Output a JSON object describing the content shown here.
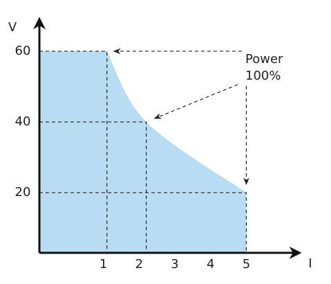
{
  "chart_data": {
    "type": "area",
    "x_label": "I",
    "y_label": "V",
    "annotation": [
      "Power",
      "100%"
    ],
    "x": [
      -0.79,
      1.1,
      2.2,
      5
    ],
    "series": [
      {
        "color": "#b8ddf2",
        "values": [
          60,
          60,
          40,
          20
        ]
      }
    ],
    "xlim": [
      -0.79,
      6.48
    ],
    "xticks": [
      1,
      2,
      3,
      4,
      5
    ],
    "ylim": [
      3,
      69
    ],
    "yticks": [
      20,
      40,
      60
    ]
  }
}
